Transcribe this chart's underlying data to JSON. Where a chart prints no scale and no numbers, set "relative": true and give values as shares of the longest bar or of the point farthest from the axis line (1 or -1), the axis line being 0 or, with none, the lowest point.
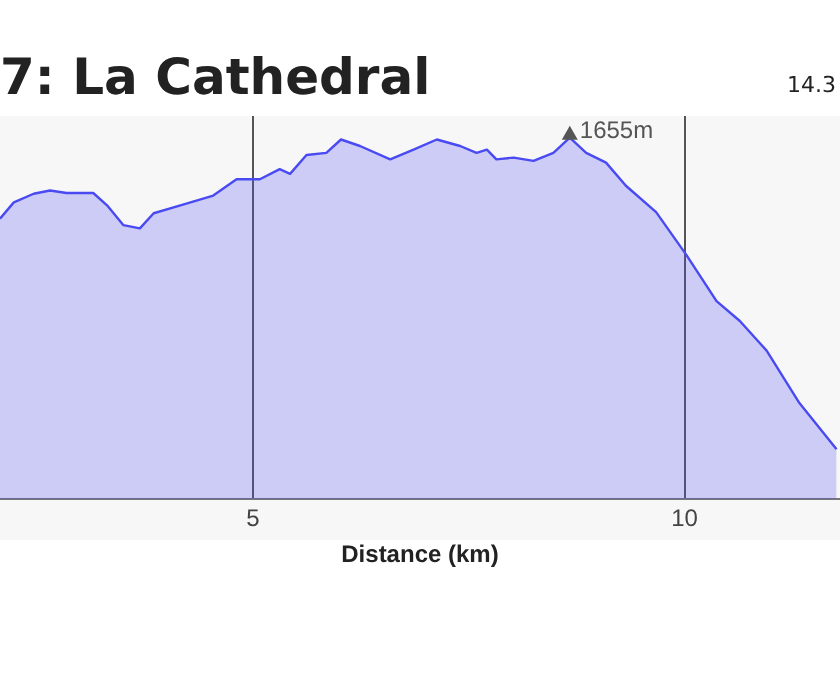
{
  "chart_data": {
    "type": "area",
    "title": "7: La Cathedral",
    "xlabel": "Distance (km)",
    "relative": true,
    "grid": "x",
    "xlim": [
      2.07,
      11.8
    ],
    "xticks": [
      5,
      10
    ],
    "legend": false,
    "marker": "none",
    "annotations": [
      {
        "text": "1655m",
        "x": 8.67,
        "y": 1
      },
      "14.3"
    ],
    "series": [
      {
        "color": "#4a4af2",
        "x": [
          2.07,
          2.23,
          2.46,
          2.65,
          2.84,
          3.15,
          3.31,
          3.5,
          3.69,
          3.85,
          4.16,
          4.54,
          4.81,
          5.08,
          5.31,
          5.43,
          5.62,
          5.85,
          6.02,
          6.24,
          6.59,
          6.86,
          7.13,
          7.4,
          7.59,
          7.71,
          7.82,
          8.02,
          8.25,
          8.48,
          8.67,
          8.86,
          9.09,
          9.32,
          9.67,
          10.02,
          10.37,
          10.64,
          10.95,
          11.33,
          11.76
        ],
        "values": [
          0.776,
          0.821,
          0.845,
          0.854,
          0.847,
          0.847,
          0.813,
          0.758,
          0.749,
          0.791,
          0.813,
          0.84,
          0.885,
          0.885,
          0.913,
          0.9,
          0.952,
          0.958,
          0.995,
          0.977,
          0.94,
          0.967,
          0.995,
          0.977,
          0.958,
          0.967,
          0.94,
          0.945,
          0.936,
          0.958,
          1,
          0.958,
          0.931,
          0.867,
          0.794,
          0.676,
          0.548,
          0.493,
          0.411,
          0.266,
          0.138
        ]
      }
    ]
  }
}
